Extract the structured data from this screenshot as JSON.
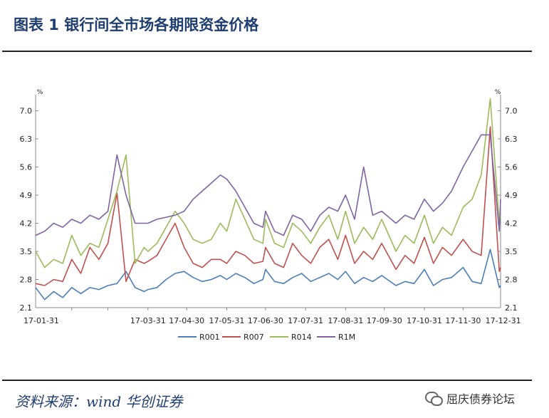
{
  "figure": {
    "title": "图表 1  银行间全市场各期限资金价格",
    "source": "资料来源：wind  华创证券",
    "watermark": "屈庆债券论坛"
  },
  "chart_data": {
    "type": "line",
    "unit_left": "%",
    "unit_right": "%",
    "ylim": [
      2.1,
      7.4
    ],
    "yticks": [
      "2.1",
      "2.8",
      "3.5",
      "4.2",
      "4.9",
      "5.6",
      "6.3",
      "7.0"
    ],
    "x_labels": [
      "17-01-31",
      "17-03-31",
      "17-04-30",
      "17-05-31",
      "17-06-30",
      "17-07-31",
      "17-08-31",
      "17-09-30",
      "17-10-31",
      "17-11-30",
      "17-12-31"
    ],
    "x": [
      "17-01-03",
      "17-01-10",
      "17-01-17",
      "17-01-24",
      "17-01-31",
      "17-02-07",
      "17-02-14",
      "17-02-21",
      "17-02-28",
      "17-03-07",
      "17-03-14",
      "17-03-21",
      "17-03-28",
      "17-03-31",
      "17-04-07",
      "17-04-14",
      "17-04-21",
      "17-04-28",
      "17-05-05",
      "17-05-12",
      "17-05-19",
      "17-05-26",
      "17-05-31",
      "17-06-07",
      "17-06-14",
      "17-06-21",
      "17-06-28",
      "17-06-30",
      "17-07-07",
      "17-07-14",
      "17-07-21",
      "17-07-28",
      "17-08-04",
      "17-08-11",
      "17-08-18",
      "17-08-25",
      "17-08-31",
      "17-09-07",
      "17-09-14",
      "17-09-21",
      "17-09-28",
      "17-10-09",
      "17-10-16",
      "17-10-23",
      "17-10-31",
      "17-11-07",
      "17-11-14",
      "17-11-21",
      "17-11-30",
      "17-12-07",
      "17-12-14",
      "17-12-21",
      "17-12-28",
      "17-12-29"
    ],
    "legend_position": "bottom",
    "series": [
      {
        "name": "R001",
        "color": "#4a7ebb",
        "values": [
          2.6,
          2.3,
          2.5,
          2.35,
          2.6,
          2.45,
          2.6,
          2.55,
          2.65,
          2.7,
          3.0,
          2.6,
          2.5,
          2.55,
          2.6,
          2.8,
          2.95,
          3.0,
          2.85,
          2.75,
          2.8,
          2.9,
          2.8,
          2.95,
          2.85,
          2.7,
          2.8,
          3.05,
          2.75,
          2.7,
          2.85,
          2.95,
          2.75,
          2.85,
          2.95,
          2.8,
          3.0,
          2.7,
          2.85,
          2.75,
          2.9,
          2.65,
          2.75,
          2.7,
          3.05,
          2.65,
          2.8,
          2.85,
          3.1,
          2.75,
          2.7,
          3.55,
          2.6,
          2.65
        ]
      },
      {
        "name": "R007",
        "color": "#c0504d",
        "values": [
          2.7,
          2.65,
          2.8,
          2.75,
          3.3,
          2.95,
          3.6,
          3.3,
          3.7,
          4.95,
          2.75,
          3.3,
          3.2,
          3.25,
          3.4,
          3.8,
          4.2,
          3.6,
          3.2,
          3.1,
          3.3,
          3.3,
          3.2,
          3.5,
          3.4,
          3.2,
          3.25,
          3.6,
          3.2,
          3.1,
          3.7,
          3.4,
          3.2,
          3.6,
          3.8,
          3.3,
          3.9,
          3.2,
          3.5,
          3.3,
          3.7,
          3.05,
          3.4,
          3.2,
          3.85,
          3.2,
          3.6,
          3.4,
          3.8,
          3.5,
          3.4,
          6.6,
          3.0,
          3.1
        ]
      },
      {
        "name": "R014",
        "color": "#9bbb59",
        "values": [
          3.5,
          3.1,
          3.3,
          3.2,
          3.9,
          3.4,
          3.7,
          3.6,
          4.3,
          5.0,
          5.9,
          3.2,
          3.6,
          3.5,
          3.7,
          4.1,
          4.5,
          4.2,
          3.8,
          3.7,
          3.8,
          4.2,
          4.0,
          4.8,
          4.3,
          3.8,
          3.7,
          4.3,
          3.7,
          3.6,
          4.2,
          4.0,
          3.7,
          4.1,
          4.4,
          3.8,
          4.5,
          3.7,
          4.1,
          3.8,
          4.3,
          3.5,
          3.9,
          3.7,
          4.4,
          3.7,
          4.1,
          3.9,
          4.6,
          4.8,
          5.4,
          7.3,
          4.2,
          4.4
        ]
      },
      {
        "name": "R1M",
        "color": "#8064a2",
        "values": [
          3.9,
          4.0,
          4.2,
          4.1,
          4.3,
          4.2,
          4.4,
          4.3,
          4.5,
          5.9,
          4.9,
          4.2,
          4.2,
          4.2,
          4.3,
          4.35,
          4.4,
          4.5,
          4.8,
          5.0,
          5.2,
          5.4,
          5.3,
          5.0,
          4.6,
          4.2,
          4.1,
          4.5,
          4.0,
          3.9,
          4.4,
          4.3,
          4.0,
          4.4,
          4.6,
          4.5,
          4.9,
          4.3,
          5.6,
          4.4,
          4.5,
          4.2,
          4.4,
          4.3,
          4.8,
          4.5,
          4.7,
          5.0,
          5.6,
          6.0,
          6.4,
          6.4,
          4.0,
          4.8
        ]
      }
    ]
  }
}
